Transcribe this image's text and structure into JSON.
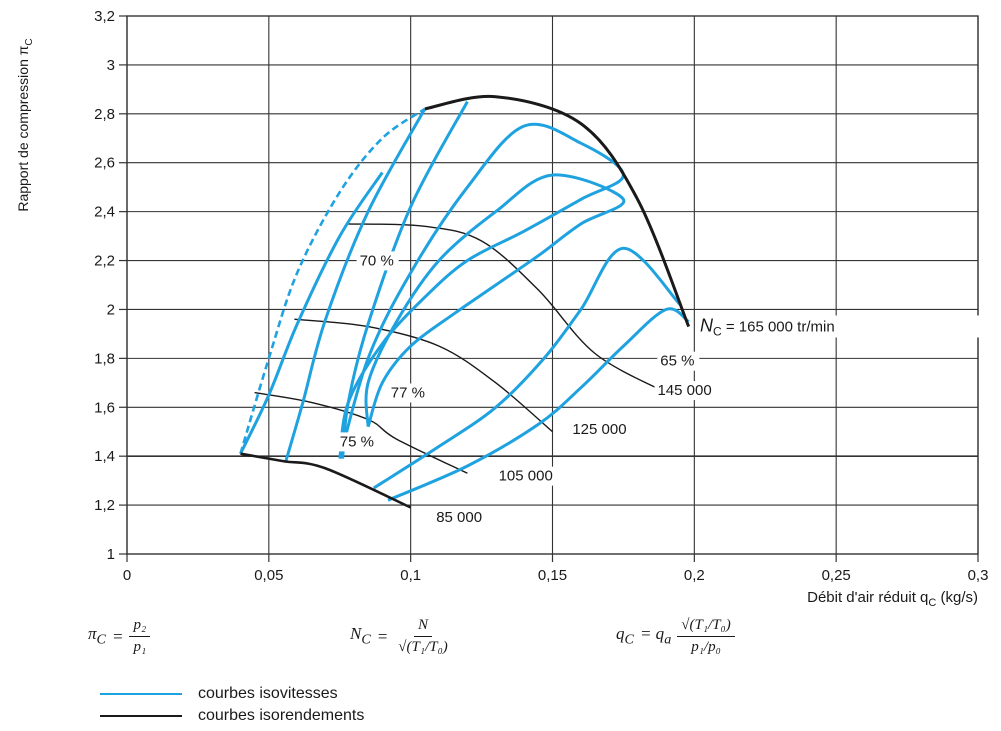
{
  "chart_data": {
    "type": "line",
    "xlabel": "Débit d'air réduit q",
    "xlabel_sub": "C",
    "xlabel_unit": " (kg/s)",
    "ylabel": "Rapport de compression π",
    "ylabel_sub": "C",
    "xlim": [
      0,
      0.3
    ],
    "ylim": [
      1,
      3.2
    ],
    "x_ticks": [
      0,
      0.05,
      0.1,
      0.15,
      0.2,
      0.25,
      0.3
    ],
    "x_tick_labels": [
      "0",
      "0,05",
      "0,1",
      "0,15",
      "0,2",
      "0,25",
      "0,3"
    ],
    "y_ticks": [
      1,
      1.2,
      1.4,
      1.6,
      1.8,
      2,
      2.2,
      2.4,
      2.6,
      2.8,
      3,
      3.2
    ],
    "y_tick_labels": [
      "1",
      "1,2",
      "1,4",
      "1,6",
      "1,8",
      "2",
      "2,2",
      "2,4",
      "2,6",
      "2,8",
      "3",
      "3,2"
    ],
    "grid": true,
    "colors": {
      "isovitesse": "#1fa2e0",
      "isorendement": "#1a1a1a"
    },
    "surge_line": [
      [
        0.04,
        1.41
      ],
      [
        0.05,
        1.8
      ],
      [
        0.06,
        2.15
      ],
      [
        0.075,
        2.48
      ],
      [
        0.09,
        2.7
      ],
      [
        0.105,
        2.82
      ]
    ],
    "envelope": [
      [
        0.04,
        1.41
      ],
      [
        0.055,
        1.38
      ],
      [
        0.07,
        1.35
      ],
      [
        0.1,
        1.19
      ]
    ],
    "choke_line": [
      [
        0.105,
        2.82
      ],
      [
        0.13,
        2.87
      ],
      [
        0.16,
        2.76
      ],
      [
        0.18,
        2.45
      ],
      [
        0.198,
        1.93
      ]
    ],
    "speed_lines": [
      {
        "points": [
          [
            0.04,
            1.41
          ],
          [
            0.05,
            1.65
          ],
          [
            0.06,
            1.94
          ],
          [
            0.075,
            2.3
          ],
          [
            0.09,
            2.56
          ]
        ]
      },
      {
        "points": [
          [
            0.056,
            1.38
          ],
          [
            0.062,
            1.62
          ],
          [
            0.07,
            1.96
          ],
          [
            0.085,
            2.4
          ],
          [
            0.105,
            2.82
          ]
        ]
      },
      {
        "points": [
          [
            0.076,
            1.39
          ],
          [
            0.078,
            1.62
          ],
          [
            0.085,
            1.94
          ],
          [
            0.1,
            2.42
          ],
          [
            0.12,
            2.85
          ]
        ]
      },
      {
        "points": [
          [
            0.087,
            1.27
          ],
          [
            0.11,
            1.44
          ],
          [
            0.13,
            1.6
          ],
          [
            0.147,
            1.8
          ],
          [
            0.16,
            2.0
          ],
          [
            0.175,
            2.25
          ],
          [
            0.195,
            2.02
          ]
        ]
      },
      {
        "points": [
          [
            0.092,
            1.22
          ],
          [
            0.12,
            1.36
          ],
          [
            0.145,
            1.53
          ],
          [
            0.16,
            1.68
          ],
          [
            0.175,
            1.85
          ],
          [
            0.19,
            2.0
          ],
          [
            0.198,
            1.95
          ]
        ]
      }
    ],
    "efficiency_lines": [
      {
        "points": [
          [
            0.045,
            1.66
          ],
          [
            0.065,
            1.62
          ],
          [
            0.085,
            1.55
          ],
          [
            0.095,
            1.47
          ],
          [
            0.12,
            1.33
          ]
        ]
      },
      {
        "points": [
          [
            0.059,
            1.96
          ],
          [
            0.085,
            1.93
          ],
          [
            0.11,
            1.85
          ],
          [
            0.13,
            1.7
          ],
          [
            0.15,
            1.5
          ]
        ]
      },
      {
        "points": [
          [
            0.078,
            2.35
          ],
          [
            0.105,
            2.34
          ],
          [
            0.125,
            2.28
          ],
          [
            0.145,
            2.08
          ],
          [
            0.165,
            1.82
          ],
          [
            0.19,
            1.66
          ]
        ]
      }
    ],
    "loops": [
      {
        "points": [
          [
            0.085,
            1.52
          ],
          [
            0.09,
            1.7
          ],
          [
            0.1,
            1.85
          ],
          [
            0.115,
            1.98
          ],
          [
            0.13,
            2.1
          ],
          [
            0.145,
            2.22
          ],
          [
            0.16,
            2.35
          ],
          [
            0.175,
            2.45
          ],
          [
            0.15,
            2.55
          ],
          [
            0.13,
            2.4
          ],
          [
            0.11,
            2.2
          ],
          [
            0.095,
            1.95
          ],
          [
            0.085,
            1.7
          ],
          [
            0.085,
            1.52
          ]
        ]
      },
      {
        "points": [
          [
            0.075,
            1.39
          ],
          [
            0.078,
            1.62
          ],
          [
            0.09,
            1.86
          ],
          [
            0.105,
            2.05
          ],
          [
            0.12,
            2.2
          ],
          [
            0.14,
            2.32
          ],
          [
            0.16,
            2.45
          ],
          [
            0.175,
            2.55
          ],
          [
            0.16,
            2.68
          ],
          [
            0.14,
            2.75
          ],
          [
            0.12,
            2.5
          ],
          [
            0.1,
            2.15
          ],
          [
            0.085,
            1.8
          ],
          [
            0.075,
            1.39
          ]
        ]
      }
    ],
    "annotations": [
      {
        "text": "70 %",
        "x": 0.082,
        "y": 2.18
      },
      {
        "text": "77 %",
        "x": 0.093,
        "y": 1.64
      },
      {
        "text": "75 %",
        "x": 0.075,
        "y": 1.44
      },
      {
        "text": "65 %",
        "x": 0.188,
        "y": 1.77
      },
      {
        "text": "145 000",
        "x": 0.187,
        "y": 1.65
      },
      {
        "text": "125 000",
        "x": 0.157,
        "y": 1.49
      },
      {
        "text": "105 000",
        "x": 0.131,
        "y": 1.3
      },
      {
        "text": "85 000",
        "x": 0.109,
        "y": 1.13
      }
    ],
    "nc_label": {
      "main": "N",
      "sub": "C",
      "rest": " = 165 000 tr/min",
      "x": 0.202,
      "y": 1.91
    }
  },
  "formulas": {
    "pi": {
      "lhs": "π",
      "lhs_sub": "C",
      "eq": " = ",
      "num": "p₂",
      "den": "p₁"
    },
    "n": {
      "lhs": "N",
      "lhs_sub": "C",
      "eq": " = ",
      "num": "N",
      "den": "√(T₁/T₀)"
    },
    "q": {
      "lhs": "q",
      "lhs_sub": "C",
      "eq": " = q",
      "eq_sub": "a",
      "num": "√(T₁/T₀)",
      "den": "p₁/p₀"
    }
  },
  "legend": {
    "items": [
      {
        "label": "courbes isovitesses",
        "color": "#1fa2e0"
      },
      {
        "label": "courbes isorendements",
        "color": "#1a1a1a"
      }
    ]
  }
}
